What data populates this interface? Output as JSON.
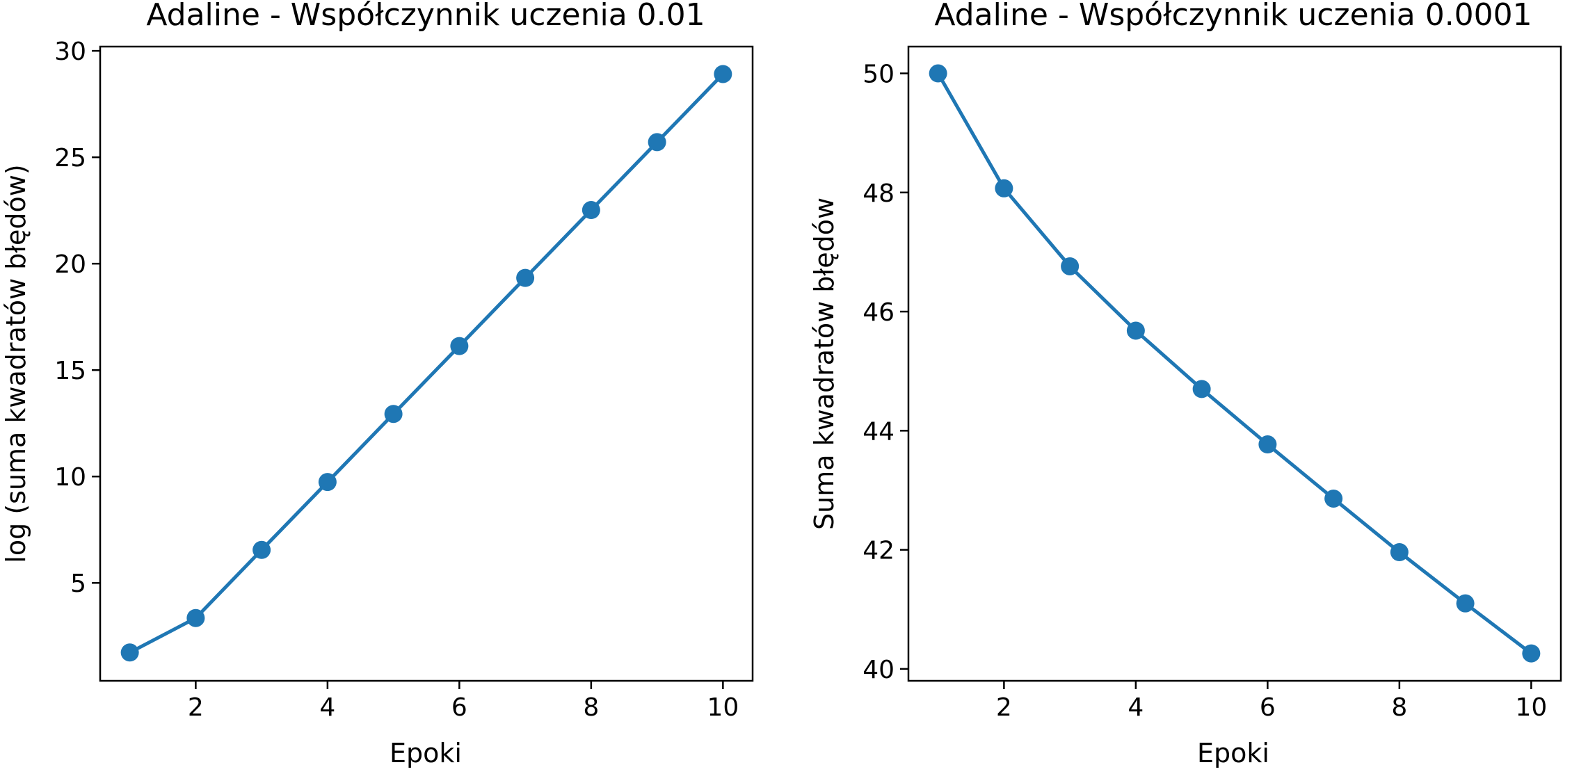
{
  "figure": {
    "background": "#ffffff",
    "series_color": "#1f77b4"
  },
  "chart_data": [
    {
      "type": "line",
      "title": "Adaline - Współczynnik uczenia 0.01",
      "xlabel": "Epoki",
      "ylabel": "log (suma kwadratów błędów)",
      "x": [
        1,
        2,
        3,
        4,
        5,
        6,
        7,
        8,
        9,
        10
      ],
      "series": [
        {
          "values": [
            1.73,
            3.35,
            6.55,
            9.74,
            12.94,
            16.13,
            19.33,
            22.52,
            25.71,
            28.91
          ],
          "marker": "circle"
        }
      ],
      "xlim": [
        0.55,
        10.45
      ],
      "ylim": [
        0.4,
        30.2
      ],
      "xticks": [
        2,
        4,
        6,
        8,
        10
      ],
      "yticks": [
        5,
        10,
        15,
        20,
        25,
        30
      ],
      "xtick_labels": [
        "2",
        "4",
        "6",
        "8",
        "10"
      ],
      "ytick_labels": [
        "5",
        "10",
        "15",
        "20",
        "25",
        "30"
      ],
      "grid": false,
      "legend": "none"
    },
    {
      "type": "line",
      "title": "Adaline - Współczynnik uczenia 0.0001",
      "xlabel": "Epoki",
      "ylabel": "Suma kwadratów błędów",
      "x": [
        1,
        2,
        3,
        4,
        5,
        6,
        7,
        8,
        9,
        10
      ],
      "series": [
        {
          "values": [
            50.0,
            48.07,
            46.76,
            45.68,
            44.7,
            43.77,
            42.86,
            41.96,
            41.1,
            40.26
          ],
          "marker": "circle"
        }
      ],
      "xlim": [
        0.55,
        10.45
      ],
      "ylim": [
        39.8,
        50.45
      ],
      "xticks": [
        2,
        4,
        6,
        8,
        10
      ],
      "yticks": [
        40,
        42,
        44,
        46,
        48,
        50
      ],
      "xtick_labels": [
        "2",
        "4",
        "6",
        "8",
        "10"
      ],
      "ytick_labels": [
        "40",
        "42",
        "44",
        "46",
        "48",
        "50"
      ],
      "grid": false,
      "legend": "none"
    }
  ]
}
